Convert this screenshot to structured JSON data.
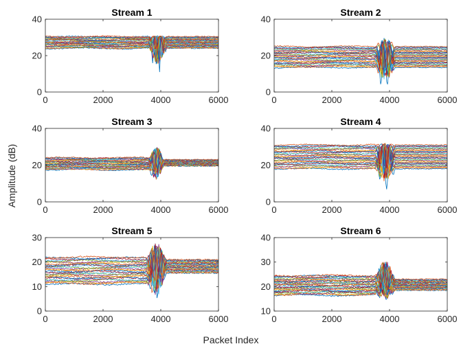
{
  "figure": {
    "ylabel": "Amplitude (dB)",
    "xlabel": "Packet Index"
  },
  "series_colors": [
    "#0072BD",
    "#D95319",
    "#EDB120",
    "#7E2F8E",
    "#77AC30",
    "#4DBEEE",
    "#A2142F"
  ],
  "chart_data": [
    {
      "type": "line",
      "title": "Stream 1",
      "xlim": [
        0,
        6000
      ],
      "ylim": [
        0,
        40
      ],
      "xticks": [
        "0",
        "2000",
        "4000",
        "6000"
      ],
      "yticks": [
        "0",
        "20",
        "40"
      ],
      "grid": false,
      "legend": "none",
      "series_count": 30,
      "baseline_range": [
        24,
        30.5
      ],
      "disturbance_x": [
        3600,
        4200
      ],
      "disturbance_min": 9,
      "disturbance_max": 31
    },
    {
      "type": "line",
      "title": "Stream 2",
      "xlim": [
        0,
        6000
      ],
      "ylim": [
        0,
        40
      ],
      "xticks": [
        "0",
        "2000",
        "4000",
        "6000"
      ],
      "yticks": [
        "0",
        "20",
        "40"
      ],
      "grid": false,
      "legend": "none",
      "series_count": 30,
      "baseline_range": [
        13.5,
        25
      ],
      "disturbance_x": [
        3500,
        4200
      ],
      "disturbance_min": 0.5,
      "disturbance_max": 30
    },
    {
      "type": "line",
      "title": "Stream 3",
      "xlim": [
        0,
        6000
      ],
      "ylim": [
        0,
        40
      ],
      "xticks": [
        "0",
        "2000",
        "4000",
        "6000"
      ],
      "yticks": [
        "0",
        "20",
        "40"
      ],
      "grid": false,
      "legend": "none",
      "series_count": 30,
      "baseline_range": [
        17.5,
        24
      ],
      "post_range": [
        19.5,
        23
      ],
      "disturbance_x": [
        3600,
        4100
      ],
      "disturbance_min": 9,
      "disturbance_max": 30.5
    },
    {
      "type": "line",
      "title": "Stream 4",
      "xlim": [
        0,
        6000
      ],
      "ylim": [
        0,
        40
      ],
      "xticks": [
        "0",
        "2000",
        "4000",
        "6000"
      ],
      "yticks": [
        "0",
        "20",
        "40"
      ],
      "grid": false,
      "legend": "none",
      "series_count": 30,
      "baseline_range": [
        18,
        31
      ],
      "disturbance_x": [
        3500,
        4200
      ],
      "disturbance_min": 6,
      "disturbance_max": 32
    },
    {
      "type": "line",
      "title": "Stream 5",
      "xlim": [
        0,
        6000
      ],
      "ylim": [
        0,
        30
      ],
      "xticks": [
        "0",
        "2000",
        "4000",
        "6000"
      ],
      "yticks": [
        "0",
        "10",
        "20",
        "30"
      ],
      "grid": false,
      "legend": "none",
      "series_count": 30,
      "baseline_range": [
        11,
        22
      ],
      "post_range": [
        15.5,
        21
      ],
      "disturbance_x": [
        3500,
        4200
      ],
      "disturbance_min": 2.5,
      "disturbance_max": 28.5
    },
    {
      "type": "line",
      "title": "Stream 6",
      "xlim": [
        0,
        6000
      ],
      "ylim": [
        10,
        40
      ],
      "xticks": [
        "0",
        "2000",
        "4000",
        "6000"
      ],
      "yticks": [
        "10",
        "20",
        "30",
        "40"
      ],
      "grid": false,
      "legend": "none",
      "series_count": 30,
      "baseline_range": [
        16.5,
        24.5
      ],
      "post_range": [
        18.5,
        23
      ],
      "disturbance_x": [
        3500,
        4200
      ],
      "disturbance_min": 13.5,
      "disturbance_max": 31
    }
  ]
}
